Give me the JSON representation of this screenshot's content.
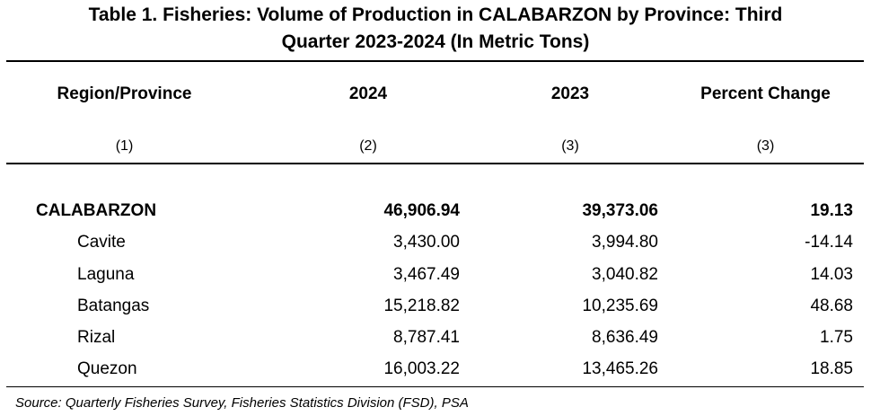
{
  "title_line1": "Table 1. Fisheries: Volume of Production in CALABARZON by Province: Third",
  "title_line2": "Quarter 2023-2024 (In Metric Tons)",
  "headers": [
    "Region/Province",
    "2024",
    "2023",
    "Percent Change"
  ],
  "column_numbers": [
    "(1)",
    "(2)",
    "(3)",
    "(3)"
  ],
  "rows": [
    {
      "name": "CALABARZON",
      "y2024": "46,906.94",
      "y2023": "39,373.06",
      "change": "19.13"
    },
    {
      "name": "Cavite",
      "y2024": "3,430.00",
      "y2023": "3,994.80",
      "change": "-14.14"
    },
    {
      "name": "Laguna",
      "y2024": "3,467.49",
      "y2023": "3,040.82",
      "change": "14.03"
    },
    {
      "name": "Batangas",
      "y2024": "15,218.82",
      "y2023": "10,235.69",
      "change": "48.68"
    },
    {
      "name": "Rizal",
      "y2024": "8,787.41",
      "y2023": "8,636.49",
      "change": "1.75"
    },
    {
      "name": "Quezon",
      "y2024": "16,003.22",
      "y2023": "13,465.26",
      "change": "18.85"
    }
  ],
  "source": "Source: Quarterly Fisheries Survey, Fisheries Statistics Division (FSD), PSA"
}
